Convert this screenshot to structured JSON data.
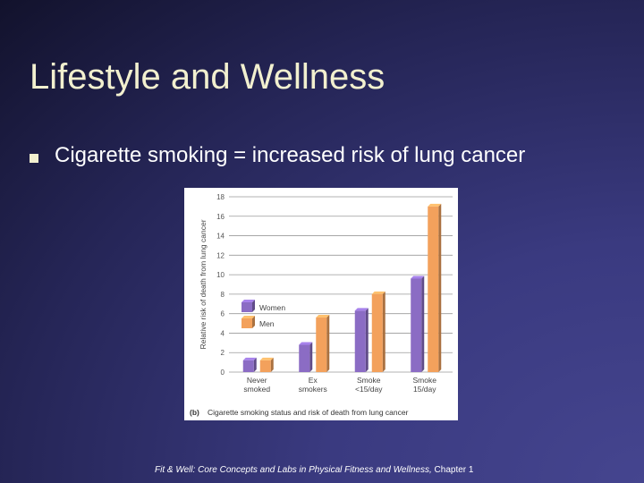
{
  "slide": {
    "title": "Lifestyle and Wellness",
    "bullet": "Cigarette smoking = increased risk of lung cancer",
    "footer_italic": "Fit & Well: Core Concepts and Labs in Physical Fitness and Wellness,",
    "footer_plain": " Chapter 1"
  },
  "chart_data": {
    "type": "bar",
    "title": "(b)  Cigarette smoking status and risk of death from lung cancer",
    "figure_label": "(b)",
    "caption": "Cigarette smoking status and risk of death from lung cancer",
    "xlabel": "",
    "ylabel": "Relative risk of death from lung cancer",
    "categories": [
      [
        "Never",
        "smoked"
      ],
      [
        "Ex",
        "smokers"
      ],
      [
        "Smoke",
        "<15/day"
      ],
      [
        "Smoke",
        "15/day"
      ]
    ],
    "series": [
      {
        "name": "Women",
        "values": [
          1.2,
          2.8,
          6.3,
          9.6
        ],
        "color": "#8b6cc4"
      },
      {
        "name": "Men",
        "values": [
          1.2,
          5.6,
          8.0,
          17.0
        ],
        "color": "#f3a15c"
      }
    ],
    "yticks": [
      0,
      2,
      4,
      6,
      8,
      10,
      12,
      14,
      16,
      18
    ],
    "ylim": [
      0,
      18
    ],
    "grid": true,
    "legend_position": "left"
  }
}
